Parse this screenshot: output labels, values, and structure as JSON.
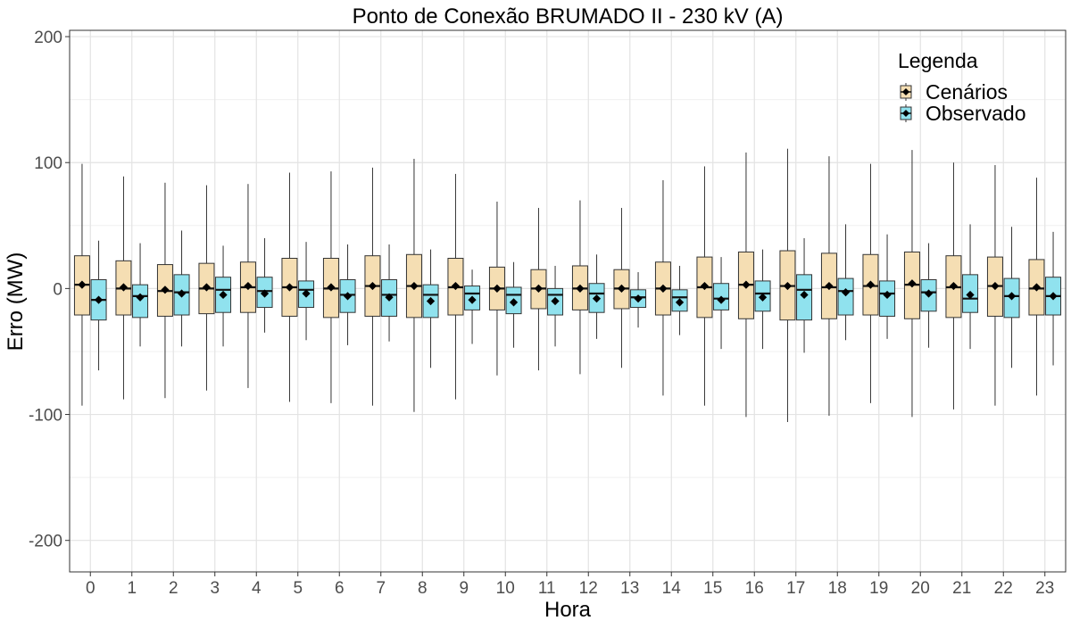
{
  "chart_data": {
    "type": "boxplot",
    "title": "Ponto de Conexão BRUMADO II - 230 kV (A)",
    "xlabel": "Hora",
    "ylabel": "Erro (MW)",
    "ylim": [
      -225,
      205
    ],
    "yticks": [
      -200,
      -100,
      0,
      100,
      200
    ],
    "grid": true,
    "legend": {
      "title": "Legenda",
      "position": "top-right"
    },
    "categories": [
      "0",
      "1",
      "2",
      "3",
      "4",
      "5",
      "6",
      "7",
      "8",
      "9",
      "10",
      "11",
      "12",
      "13",
      "14",
      "15",
      "16",
      "17",
      "18",
      "19",
      "20",
      "21",
      "22",
      "23"
    ],
    "series": [
      {
        "name": "Cenários",
        "color": "#f5deb3",
        "boxes": [
          {
            "min": -93,
            "q1": -21,
            "median": 3,
            "q3": 26,
            "max": 99,
            "mean": 3
          },
          {
            "min": -88,
            "q1": -21,
            "median": 0,
            "q3": 22,
            "max": 89,
            "mean": 1
          },
          {
            "min": -87,
            "q1": -22,
            "median": -2,
            "q3": 19,
            "max": 84,
            "mean": -1
          },
          {
            "min": -81,
            "q1": -20,
            "median": 0,
            "q3": 20,
            "max": 82,
            "mean": 1
          },
          {
            "min": -79,
            "q1": -19,
            "median": 1,
            "q3": 21,
            "max": 83,
            "mean": 2
          },
          {
            "min": -90,
            "q1": -22,
            "median": 1,
            "q3": 24,
            "max": 92,
            "mean": 1
          },
          {
            "min": -91,
            "q1": -23,
            "median": 0,
            "q3": 24,
            "max": 93,
            "mean": 1
          },
          {
            "min": -93,
            "q1": -22,
            "median": 2,
            "q3": 26,
            "max": 96,
            "mean": 2
          },
          {
            "min": -98,
            "q1": -23,
            "median": 2,
            "q3": 27,
            "max": 103,
            "mean": 2
          },
          {
            "min": -88,
            "q1": -21,
            "median": 1,
            "q3": 24,
            "max": 91,
            "mean": 2
          },
          {
            "min": -69,
            "q1": -17,
            "median": 0,
            "q3": 17,
            "max": 69,
            "mean": 0
          },
          {
            "min": -65,
            "q1": -16,
            "median": 0,
            "q3": 15,
            "max": 64,
            "mean": 0
          },
          {
            "min": -68,
            "q1": -17,
            "median": 0,
            "q3": 18,
            "max": 70,
            "mean": 0
          },
          {
            "min": -63,
            "q1": -16,
            "median": 0,
            "q3": 15,
            "max": 64,
            "mean": 0
          },
          {
            "min": -85,
            "q1": -21,
            "median": 0,
            "q3": 21,
            "max": 86,
            "mean": 0
          },
          {
            "min": -93,
            "q1": -23,
            "median": 1,
            "q3": 25,
            "max": 97,
            "mean": 2
          },
          {
            "min": -102,
            "q1": -24,
            "median": 3,
            "q3": 29,
            "max": 108,
            "mean": 3
          },
          {
            "min": -106,
            "q1": -25,
            "median": 2,
            "q3": 30,
            "max": 111,
            "mean": 2
          },
          {
            "min": -101,
            "q1": -24,
            "median": 1,
            "q3": 28,
            "max": 105,
            "mean": 2
          },
          {
            "min": -91,
            "q1": -21,
            "median": 2,
            "q3": 27,
            "max": 99,
            "mean": 3
          },
          {
            "min": -102,
            "q1": -24,
            "median": 3,
            "q3": 29,
            "max": 110,
            "mean": 4
          },
          {
            "min": -96,
            "q1": -23,
            "median": 1,
            "q3": 26,
            "max": 100,
            "mean": 2
          },
          {
            "min": -93,
            "q1": -22,
            "median": 2,
            "q3": 25,
            "max": 98,
            "mean": 2
          },
          {
            "min": -85,
            "q1": -21,
            "median": 0,
            "q3": 23,
            "max": 88,
            "mean": 1
          }
        ]
      },
      {
        "name": "Observado",
        "color": "#90e2ee",
        "boxes": [
          {
            "min": -65,
            "q1": -25,
            "median": -9,
            "q3": 7,
            "max": 38,
            "mean": -9
          },
          {
            "min": -46,
            "q1": -23,
            "median": -6,
            "q3": 3,
            "max": 36,
            "mean": -7
          },
          {
            "min": -46,
            "q1": -21,
            "median": -3,
            "q3": 11,
            "max": 46,
            "mean": -4
          },
          {
            "min": -46,
            "q1": -19,
            "median": -1,
            "q3": 9,
            "max": 34,
            "mean": -5
          },
          {
            "min": -35,
            "q1": -15,
            "median": -2,
            "q3": 9,
            "max": 40,
            "mean": -4
          },
          {
            "min": -41,
            "q1": -15,
            "median": -1,
            "q3": 6,
            "max": 37,
            "mean": -4
          },
          {
            "min": -45,
            "q1": -19,
            "median": -5,
            "q3": 7,
            "max": 35,
            "mean": -6
          },
          {
            "min": -42,
            "q1": -22,
            "median": -5,
            "q3": 7,
            "max": 35,
            "mean": -7
          },
          {
            "min": -63,
            "q1": -23,
            "median": -5,
            "q3": 3,
            "max": 31,
            "mean": -10
          },
          {
            "min": -44,
            "q1": -17,
            "median": -4,
            "q3": 2,
            "max": 15,
            "mean": -9
          },
          {
            "min": -47,
            "q1": -20,
            "median": -5,
            "q3": 1,
            "max": 21,
            "mean": -11
          },
          {
            "min": -46,
            "q1": -21,
            "median": -5,
            "q3": 0,
            "max": 18,
            "mean": -10
          },
          {
            "min": -40,
            "q1": -19,
            "median": -4,
            "q3": 4,
            "max": 27,
            "mean": -8
          },
          {
            "min": -31,
            "q1": -15,
            "median": -7,
            "q3": -1,
            "max": 13,
            "mean": -8
          },
          {
            "min": -37,
            "q1": -18,
            "median": -7,
            "q3": -1,
            "max": 18,
            "mean": -11
          },
          {
            "min": -48,
            "q1": -17,
            "median": -8,
            "q3": 4,
            "max": 25,
            "mean": -9
          },
          {
            "min": -48,
            "q1": -18,
            "median": -4,
            "q3": 6,
            "max": 31,
            "mean": -7
          },
          {
            "min": -51,
            "q1": -25,
            "median": -1,
            "q3": 11,
            "max": 40,
            "mean": -5
          },
          {
            "min": -41,
            "q1": -21,
            "median": -2,
            "q3": 8,
            "max": 51,
            "mean": -3
          },
          {
            "min": -40,
            "q1": -22,
            "median": -4,
            "q3": 6,
            "max": 43,
            "mean": -5
          },
          {
            "min": -47,
            "q1": -18,
            "median": -3,
            "q3": 7,
            "max": 36,
            "mean": -4
          },
          {
            "min": -48,
            "q1": -19,
            "median": -8,
            "q3": 11,
            "max": 51,
            "mean": -5
          },
          {
            "min": -63,
            "q1": -23,
            "median": -6,
            "q3": 8,
            "max": 49,
            "mean": -6
          },
          {
            "min": -61,
            "q1": -21,
            "median": -6,
            "q3": 9,
            "max": 45,
            "mean": -6
          }
        ]
      }
    ]
  }
}
